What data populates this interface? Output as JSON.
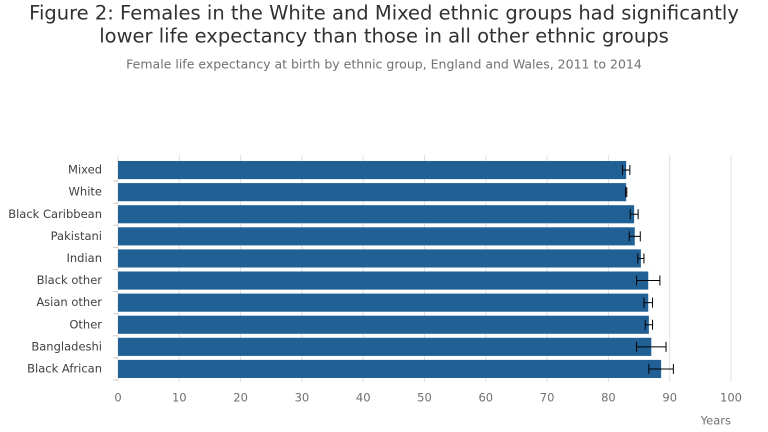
{
  "chart_data": {
    "type": "bar",
    "orientation": "horizontal",
    "title": [
      "Figure 2: Females in the White and Mixed ethnic groups had significantly",
      "lower life expectancy than those in all other ethnic groups"
    ],
    "subtitle": "Female life expectancy at birth by ethnic group, England and Wales, 2011 to 2014",
    "x_label": "Years",
    "categories": [
      "Mixed",
      "White",
      "Black Caribbean",
      "Pakistani",
      "Indian",
      "Black other",
      "Asian other",
      "Other",
      "Bangladeshi",
      "Black African"
    ],
    "values": [
      82.9,
      82.9,
      84.2,
      84.3,
      85.3,
      86.5,
      86.5,
      86.6,
      87.0,
      88.6
    ],
    "errors": [
      0.6,
      0.1,
      0.65,
      0.9,
      0.5,
      1.9,
      0.7,
      0.6,
      2.4,
      2.0
    ],
    "color": "#206095",
    "xlim": [
      0,
      100
    ],
    "xticks": [
      0,
      10,
      20,
      30,
      40,
      50,
      60,
      70,
      80,
      90,
      100
    ],
    "grid": true
  }
}
